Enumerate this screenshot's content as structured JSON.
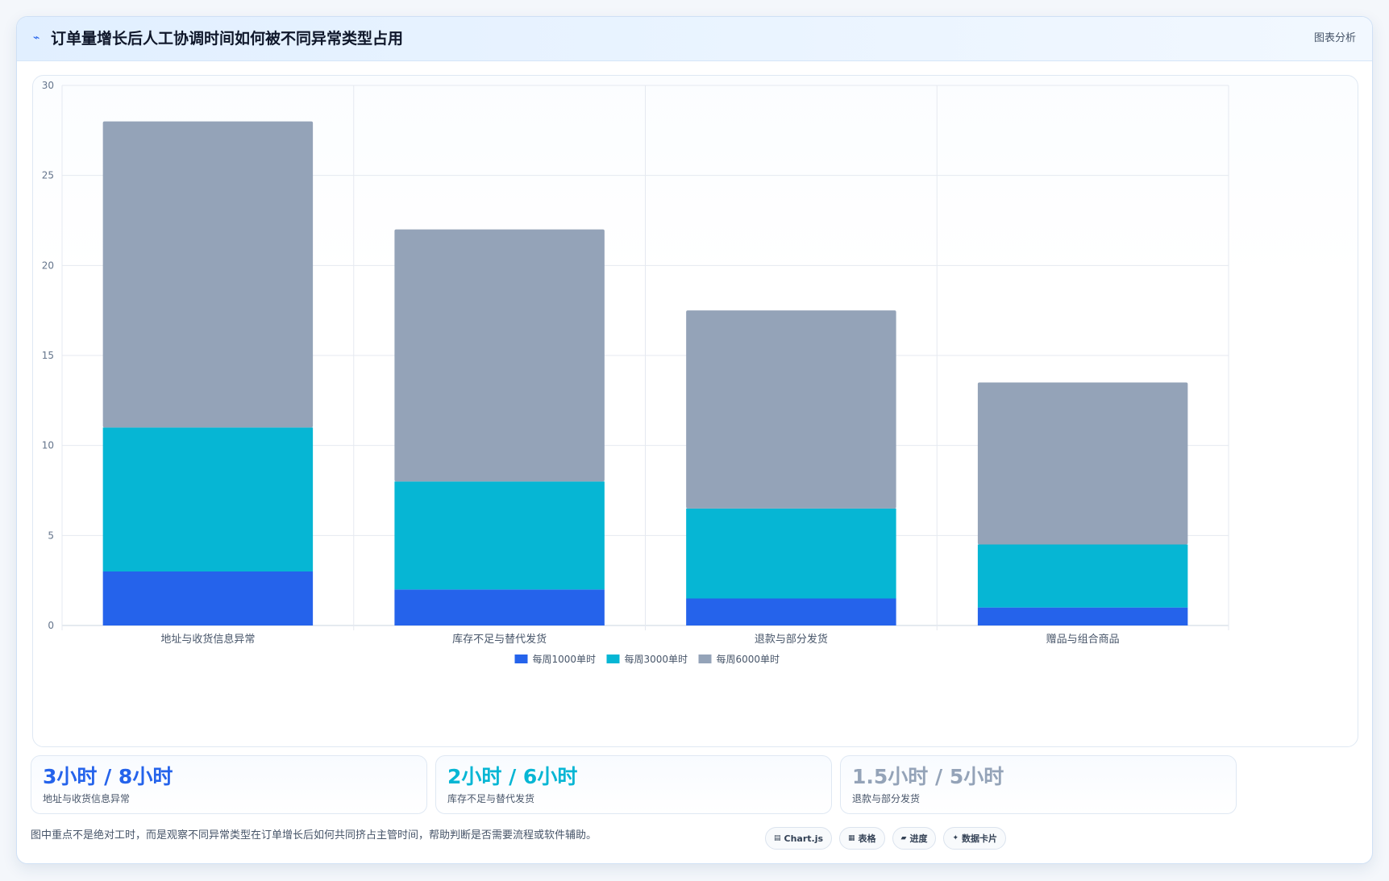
{
  "header": {
    "title": "订单量增长后人工协调时间如何被不同异常类型占用",
    "title_icon": "trend-line-icon",
    "tag": "图表分析"
  },
  "chart_data": {
    "type": "bar",
    "stacked": true,
    "title": "",
    "xlabel": "",
    "ylabel": "",
    "ylim": [
      0,
      30
    ],
    "yticks": [
      0,
      5,
      10,
      15,
      20,
      25,
      30
    ],
    "grid": true,
    "legend_position": "bottom",
    "categories": [
      "地址与收货信息异常",
      "库存不足与替代发货",
      "退款与部分发货",
      "赠品与组合商品"
    ],
    "series": [
      {
        "name": "每周1000单时",
        "color": "#2563eb",
        "values": [
          3,
          2,
          1.5,
          1
        ]
      },
      {
        "name": "每周3000单时",
        "color": "#06b6d4",
        "values": [
          8,
          6,
          5,
          3.5
        ]
      },
      {
        "name": "每周6000单时",
        "color": "#94a3b8",
        "values": [
          17,
          14,
          11,
          9
        ]
      }
    ]
  },
  "stats": [
    {
      "value": "3小时 / 8小时",
      "label": "地址与收货信息异常",
      "color": "#2563eb"
    },
    {
      "value": "2小时 / 6小时",
      "label": "库存不足与替代发货",
      "color": "#06b6d4"
    },
    {
      "value": "1.5小时 / 5小时",
      "label": "退款与部分发货",
      "color": "#94a3b8"
    }
  ],
  "footnote": "图中重点不是绝对工时，而是观察不同异常类型在订单增长后如何共同挤占主管时间，帮助判断是否需要流程或软件辅助。",
  "chips": [
    {
      "icon": "chart-icon",
      "glyph": "▤",
      "label": "Chart.js"
    },
    {
      "icon": "table-icon",
      "glyph": "▦",
      "label": "表格"
    },
    {
      "icon": "progress-icon",
      "glyph": "▰",
      "label": "进度"
    },
    {
      "icon": "sparkle-icon",
      "glyph": "✦",
      "label": "数据卡片"
    }
  ]
}
